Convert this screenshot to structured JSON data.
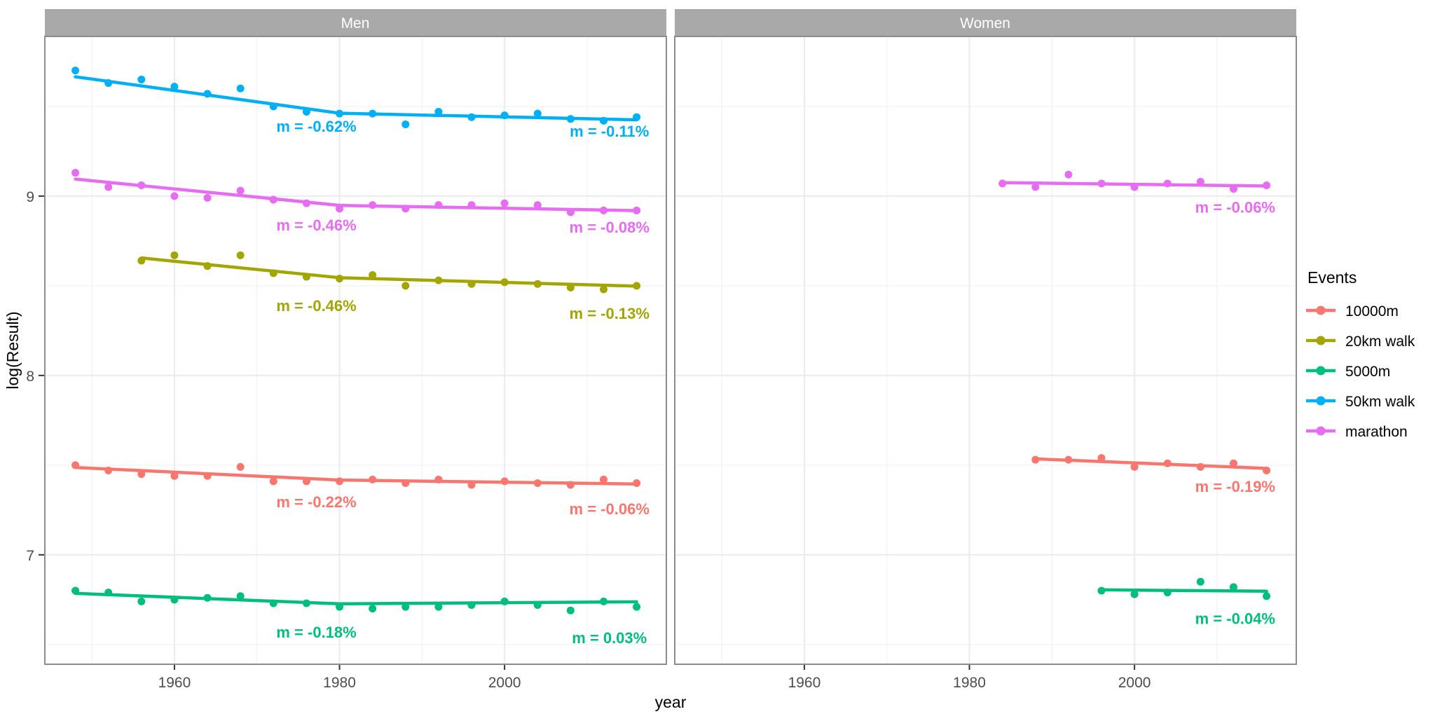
{
  "chart_data": {
    "type": "scatter",
    "title": "",
    "xlabel": "year",
    "ylabel": "log(Result)",
    "x_ticks": [
      1960,
      1980,
      2000
    ],
    "x_minor_ticks": [
      1950,
      1970,
      1990,
      2010
    ],
    "y_ticks": [
      7,
      8,
      9
    ],
    "y_minor_ticks": [
      6.5,
      7.5,
      8.5,
      9.5
    ],
    "x_domain": [
      1944.3,
      2019.6
    ],
    "y_domain": [
      6.39,
      9.89
    ],
    "grid": true,
    "legend": {
      "title": "Events",
      "position": "right",
      "entries": [
        {
          "label": "10000m",
          "color": "#F8766D"
        },
        {
          "label": "20km walk",
          "color": "#A3A500"
        },
        {
          "label": "5000m",
          "color": "#00BF7D"
        },
        {
          "label": "50km walk",
          "color": "#00B0F6"
        },
        {
          "label": "marathon",
          "color": "#E76BF3"
        }
      ]
    },
    "facets": [
      {
        "label": "Men",
        "series": [
          {
            "event": "50km walk",
            "color": "#00B0F6",
            "points": [
              [
                1948,
                9.7
              ],
              [
                1952,
                9.63
              ],
              [
                1956,
                9.65
              ],
              [
                1960,
                9.61
              ],
              [
                1964,
                9.57
              ],
              [
                1968,
                9.6
              ],
              [
                1972,
                9.5
              ],
              [
                1976,
                9.47
              ],
              [
                1980,
                9.46
              ],
              [
                1984,
                9.46
              ],
              [
                1988,
                9.4
              ],
              [
                1992,
                9.47
              ],
              [
                1996,
                9.44
              ],
              [
                2000,
                9.45
              ],
              [
                2004,
                9.46
              ],
              [
                2008,
                9.43
              ],
              [
                2012,
                9.42
              ],
              [
                2016,
                9.44
              ]
            ],
            "trend": [
              [
                1948,
                9.665
              ],
              [
                1980,
                9.462
              ],
              [
                2016,
                9.425
              ]
            ],
            "labels": [
              {
                "text": "m = -0.62%",
                "year": 1977.2,
                "value": 9.39
              },
              {
                "text": "m = -0.11%",
                "year": 2012.7,
                "value": 9.363
              }
            ]
          },
          {
            "event": "marathon",
            "color": "#E76BF3",
            "points": [
              [
                1948,
                9.13
              ],
              [
                1952,
                9.05
              ],
              [
                1956,
                9.06
              ],
              [
                1960,
                9.0
              ],
              [
                1964,
                8.99
              ],
              [
                1968,
                9.03
              ],
              [
                1972,
                8.98
              ],
              [
                1976,
                8.96
              ],
              [
                1980,
                8.93
              ],
              [
                1984,
                8.95
              ],
              [
                1988,
                8.93
              ],
              [
                1992,
                8.95
              ],
              [
                1996,
                8.95
              ],
              [
                2000,
                8.96
              ],
              [
                2004,
                8.95
              ],
              [
                2008,
                8.91
              ],
              [
                2012,
                8.92
              ],
              [
                2016,
                8.92
              ]
            ],
            "trend": [
              [
                1948,
                9.095
              ],
              [
                1980,
                8.948
              ],
              [
                2016,
                8.919
              ]
            ],
            "labels": [
              {
                "text": "m = -0.46%",
                "year": 1977.2,
                "value": 8.84
              },
              {
                "text": "m = -0.08%",
                "year": 2012.7,
                "value": 8.828
              }
            ]
          },
          {
            "event": "20km walk",
            "color": "#A3A500",
            "points": [
              [
                1956,
                8.64
              ],
              [
                1960,
                8.67
              ],
              [
                1964,
                8.61
              ],
              [
                1968,
                8.67
              ],
              [
                1972,
                8.57
              ],
              [
                1976,
                8.55
              ],
              [
                1980,
                8.54
              ],
              [
                1984,
                8.56
              ],
              [
                1988,
                8.5
              ],
              [
                1992,
                8.53
              ],
              [
                1996,
                8.51
              ],
              [
                2000,
                8.52
              ],
              [
                2004,
                8.51
              ],
              [
                2008,
                8.49
              ],
              [
                2012,
                8.48
              ],
              [
                2016,
                8.5
              ]
            ],
            "trend": [
              [
                1956,
                8.655
              ],
              [
                1980,
                8.545
              ],
              [
                2016,
                8.498
              ]
            ],
            "labels": [
              {
                "text": "m = -0.46%",
                "year": 1977.2,
                "value": 8.39
              },
              {
                "text": "m = -0.13%",
                "year": 2012.7,
                "value": 8.348
              }
            ]
          },
          {
            "event": "10000m",
            "color": "#F8766D",
            "points": [
              [
                1948,
                7.5
              ],
              [
                1952,
                7.47
              ],
              [
                1956,
                7.45
              ],
              [
                1960,
                7.44
              ],
              [
                1964,
                7.44
              ],
              [
                1968,
                7.49
              ],
              [
                1972,
                7.41
              ],
              [
                1976,
                7.41
              ],
              [
                1980,
                7.41
              ],
              [
                1984,
                7.42
              ],
              [
                1988,
                7.4
              ],
              [
                1992,
                7.42
              ],
              [
                1996,
                7.39
              ],
              [
                2000,
                7.41
              ],
              [
                2004,
                7.4
              ],
              [
                2008,
                7.39
              ],
              [
                2012,
                7.42
              ],
              [
                2016,
                7.4
              ]
            ],
            "trend": [
              [
                1948,
                7.487
              ],
              [
                1980,
                7.417
              ],
              [
                2016,
                7.395
              ]
            ],
            "labels": [
              {
                "text": "m = -0.22%",
                "year": 1977.2,
                "value": 7.297
              },
              {
                "text": "m = -0.06%",
                "year": 2012.7,
                "value": 7.258
              }
            ]
          },
          {
            "event": "5000m",
            "color": "#00BF7D",
            "points": [
              [
                1948,
                6.8
              ],
              [
                1952,
                6.79
              ],
              [
                1956,
                6.74
              ],
              [
                1960,
                6.75
              ],
              [
                1964,
                6.76
              ],
              [
                1968,
                6.77
              ],
              [
                1972,
                6.73
              ],
              [
                1976,
                6.73
              ],
              [
                1980,
                6.71
              ],
              [
                1984,
                6.7
              ],
              [
                1988,
                6.71
              ],
              [
                1992,
                6.71
              ],
              [
                1996,
                6.72
              ],
              [
                2000,
                6.74
              ],
              [
                2004,
                6.72
              ],
              [
                2008,
                6.69
              ],
              [
                2012,
                6.74
              ],
              [
                2016,
                6.71
              ]
            ],
            "trend": [
              [
                1948,
                6.785
              ],
              [
                1980,
                6.727
              ],
              [
                2016,
                6.738
              ]
            ],
            "labels": [
              {
                "text": "m = -0.18%",
                "year": 1977.2,
                "value": 6.57
              },
              {
                "text": "m = 0.03%",
                "year": 2012.7,
                "value": 6.539
              }
            ]
          }
        ]
      },
      {
        "label": "Women",
        "series": [
          {
            "event": "marathon",
            "color": "#E76BF3",
            "points": [
              [
                1984,
                9.07
              ],
              [
                1988,
                9.05
              ],
              [
                1992,
                9.12
              ],
              [
                1996,
                9.07
              ],
              [
                2000,
                9.05
              ],
              [
                2004,
                9.07
              ],
              [
                2008,
                9.08
              ],
              [
                2012,
                9.04
              ],
              [
                2016,
                9.06
              ]
            ],
            "trend": [
              [
                1984,
                9.075
              ],
              [
                2016,
                9.056
              ]
            ],
            "labels": [
              {
                "text": "m = -0.06%",
                "year": 2012.2,
                "value": 8.938
              }
            ]
          },
          {
            "event": "10000m",
            "color": "#F8766D",
            "points": [
              [
                1988,
                7.53
              ],
              [
                1992,
                7.53
              ],
              [
                1996,
                7.54
              ],
              [
                2000,
                7.49
              ],
              [
                2004,
                7.51
              ],
              [
                2008,
                7.49
              ],
              [
                2012,
                7.51
              ],
              [
                2016,
                7.47
              ]
            ],
            "trend": [
              [
                1988,
                7.535
              ],
              [
                2016,
                7.482
              ]
            ],
            "labels": [
              {
                "text": "m = -0.19%",
                "year": 2012.2,
                "value": 7.383
              }
            ]
          },
          {
            "event": "5000m",
            "color": "#00BF7D",
            "points": [
              [
                1996,
                6.8
              ],
              [
                2000,
                6.78
              ],
              [
                2004,
                6.79
              ],
              [
                2008,
                6.85
              ],
              [
                2012,
                6.82
              ],
              [
                2016,
                6.77
              ]
            ],
            "trend": [
              [
                1996,
                6.805
              ],
              [
                2016,
                6.797
              ]
            ],
            "labels": [
              {
                "text": "m = -0.04%",
                "year": 2012.2,
                "value": 6.645
              }
            ]
          }
        ]
      }
    ]
  },
  "colors": {
    "background": "#FFFFFF",
    "strip_bg": "#A9A9A9",
    "strip_text": "#FFFFFF",
    "panel_border": "#8C8C8C",
    "grid_major": "#EBEBEB",
    "grid_minor": "#F4F4F4",
    "tick_mark": "#333333",
    "tick_label": "#4D4D4D",
    "axis_title": "#000000",
    "legend_text": "#000000"
  }
}
